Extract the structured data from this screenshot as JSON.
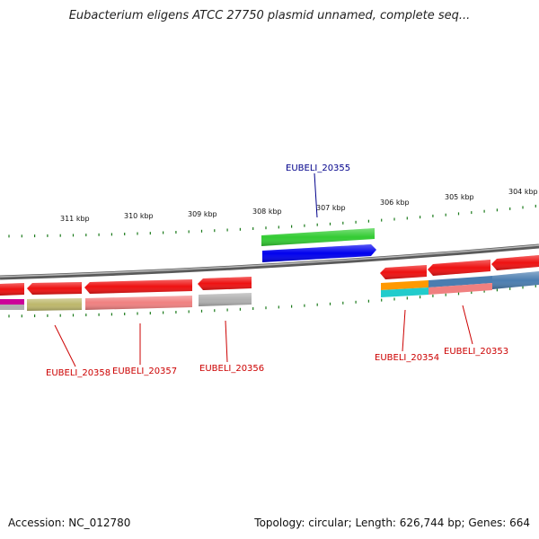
{
  "title": "Eubacterium eligens ATCC 27750 plasmid unnamed, complete seq...",
  "footer": {
    "accession": "Accession: NC_012780",
    "summary": "Topology: circular; Length: 626,744 bp; Genes: 664"
  },
  "scale_labels": [
    "311 kbp",
    "310 kbp",
    "309 kbp",
    "308 kbp",
    "307 kbp",
    "306 kbp",
    "305 kbp",
    "304 kbp"
  ],
  "gene_labels": [
    {
      "text": "EUBELI_20355",
      "color": "#00008b"
    },
    {
      "text": "EUBELI_20358",
      "color": "#cc0000"
    },
    {
      "text": "EUBELI_20357",
      "color": "#cc0000"
    },
    {
      "text": "EUBELI_20356",
      "color": "#cc0000"
    },
    {
      "text": "EUBELI_20354",
      "color": "#cc0000"
    },
    {
      "text": "EUBELI_20353",
      "color": "#cc0000"
    }
  ],
  "colors": {
    "backbone": "#8a8a8a",
    "tick": "#1a7a1a",
    "cds_red": "#ee1111",
    "cds_pink": "#f08080",
    "olive": "#bdb76b",
    "gray": "#b0b0b0",
    "magenta": "#cc0099",
    "green": "#33cc33",
    "blue": "#0000ee",
    "orange": "#ff9900",
    "cyan": "#22cccc",
    "steel": "#4a7db0"
  }
}
